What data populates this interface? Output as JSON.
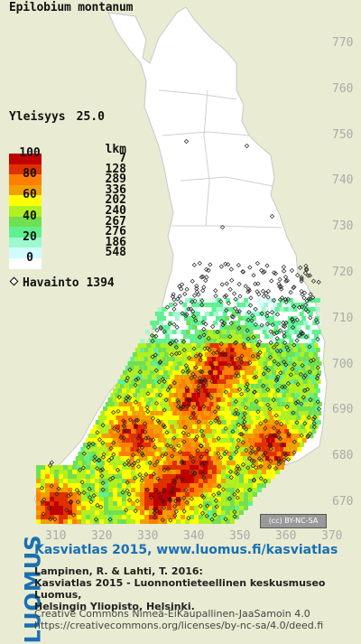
{
  "species": "Epilobium montanum",
  "frequency": {
    "label": "Yleisyys",
    "value": "25.0"
  },
  "legend": {
    "count_header": "lkm",
    "levels": [
      {
        "label": "100",
        "color": "#c00000"
      },
      {
        "label": "",
        "color": "#e03000"
      },
      {
        "label": "80",
        "color": "#ff7f00"
      },
      {
        "label": "",
        "color": "#f0a000"
      },
      {
        "label": "60",
        "color": "#ffff00"
      },
      {
        "label": "",
        "color": "#b0f020"
      },
      {
        "label": "40",
        "color": "#70e050"
      },
      {
        "label": "",
        "color": "#60f090"
      },
      {
        "label": "20",
        "color": "#a0f8d0"
      },
      {
        "label": "",
        "color": "#d0fcff"
      },
      {
        "label": "0",
        "color": "#ffffff"
      }
    ],
    "counts": [
      "7",
      "128",
      "289",
      "336",
      "202",
      "240",
      "267",
      "276",
      "186",
      "548"
    ]
  },
  "observations": {
    "label": "Havainto",
    "count": "1394"
  },
  "y_axis": [
    "770",
    "760",
    "750",
    "740",
    "730",
    "720",
    "710",
    "700",
    "690",
    "680",
    "670"
  ],
  "x_axis": [
    "310",
    "320",
    "330",
    "340",
    "350",
    "360",
    "370"
  ],
  "license_badge": "BY-NC-SA",
  "logo": "LUOMUS",
  "footer": {
    "title": "Kasviatlas 2015, www.luomus.fi/kasviatlas",
    "citation_line1": "Lampinen, R. & Lahti, T. 2016:",
    "citation_line2": "Kasviatlas 2015 - Luonnontieteellinen keskusmuseo Luomus,",
    "citation_line3": "Helsingin Yliopisto, Helsinki.",
    "license_line1": "Creative Commons Nimeä-EiKaupallinen-JaaSamoin 4.0",
    "license_line2": "https://creativecommons.org/licenses/by-nc-sa/4.0/deed.fi"
  }
}
